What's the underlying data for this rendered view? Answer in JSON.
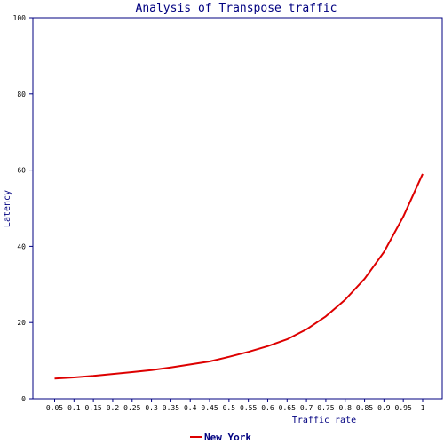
{
  "chart_data": {
    "type": "line",
    "title": "Analysis of Transpose traffic",
    "xlabel": "Traffic rate",
    "ylabel": "Latency",
    "ylim": [
      0,
      100
    ],
    "yticks": [
      "0",
      "20",
      "40",
      "60",
      "80",
      "100"
    ],
    "x": [
      "0.05",
      "0.1",
      "0.15",
      "0.2",
      "0.25",
      "0.3",
      "0.35",
      "0.4",
      "0.45",
      "0.5",
      "0.55",
      "0.6",
      "0.65",
      "0.7",
      "0.75",
      "0.8",
      "0.85",
      "0.9",
      "0.95",
      "1"
    ],
    "series": [
      {
        "name": "New York",
        "color": "#dd0000",
        "values": [
          5.3,
          5.6,
          6.0,
          6.5,
          7.0,
          7.5,
          8.2,
          9.0,
          9.8,
          11.0,
          12.3,
          13.8,
          15.6,
          18.2,
          21.6,
          26.0,
          31.5,
          38.5,
          47.8,
          59.0
        ]
      }
    ],
    "grid": false,
    "legend_position": "bottom-center"
  }
}
